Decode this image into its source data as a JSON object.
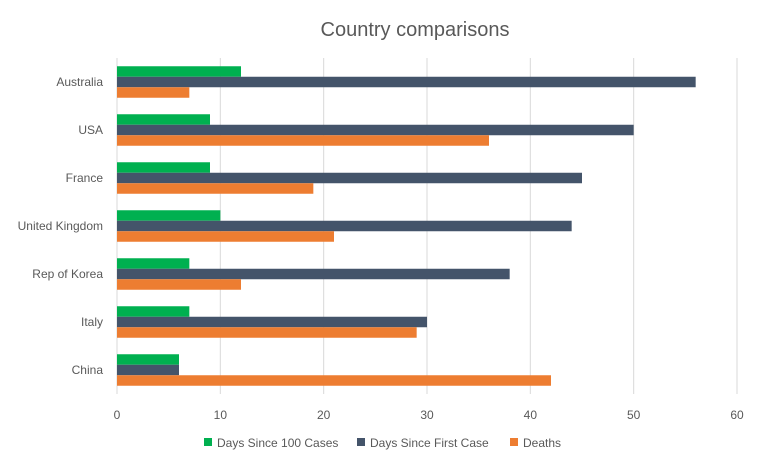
{
  "chart_data": {
    "type": "bar",
    "orientation": "horizontal",
    "title": "Country comparisons",
    "xlabel": "",
    "ylabel": "",
    "xlim": [
      0,
      60
    ],
    "x_ticks": [
      0,
      10,
      20,
      30,
      40,
      50,
      60
    ],
    "grid": "vertical",
    "legend_position": "bottom",
    "categories": [
      "Australia",
      "USA",
      "France",
      "United Kingdom",
      "Rep of Korea",
      "Italy",
      "China"
    ],
    "series": [
      {
        "name": "Days Since 100 Cases",
        "color": "#00b050",
        "values": [
          12,
          9,
          9,
          10,
          7,
          7,
          6
        ]
      },
      {
        "name": "Days Since First Case",
        "color": "#44546a",
        "values": [
          56,
          50,
          45,
          44,
          38,
          30,
          6
        ]
      },
      {
        "name": "Deaths",
        "color": "#ed7d31",
        "values": [
          7,
          36,
          19,
          21,
          12,
          29,
          42
        ]
      }
    ]
  }
}
